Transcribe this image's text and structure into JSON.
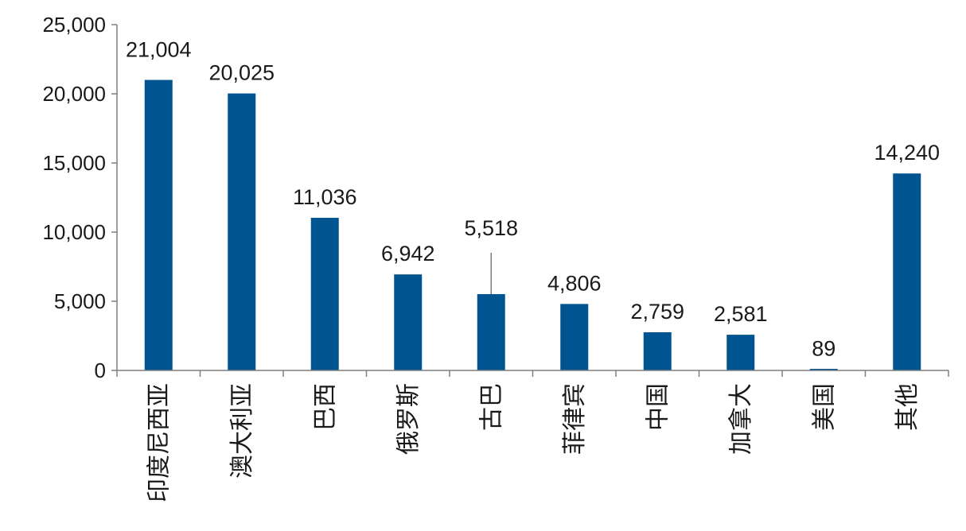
{
  "chart_data": {
    "type": "bar",
    "categories": [
      "印度尼西亚",
      "澳大利亚",
      "巴西",
      "俄罗斯",
      "古巴",
      "菲律宾",
      "中国",
      "加拿大",
      "美国",
      "其他"
    ],
    "values": [
      21004,
      20025,
      11036,
      6942,
      5518,
      4806,
      2759,
      2581,
      89,
      14240
    ],
    "data_labels": [
      "21,004",
      "20,025",
      "11,036",
      "6,942",
      "5,518",
      "4,806",
      "2,759",
      "2,581",
      "89",
      "14,240"
    ],
    "yticks": [
      0,
      5000,
      10000,
      15000,
      20000,
      25000
    ],
    "ytick_labels": [
      "0",
      "5,000",
      "10,000",
      "15,000",
      "20,000",
      "25,000"
    ],
    "ylim": [
      0,
      25000
    ],
    "title": "",
    "xlabel": "",
    "ylabel": "",
    "bar_color": "#005591",
    "axis_color": "#7f7f7f",
    "grid": false
  }
}
